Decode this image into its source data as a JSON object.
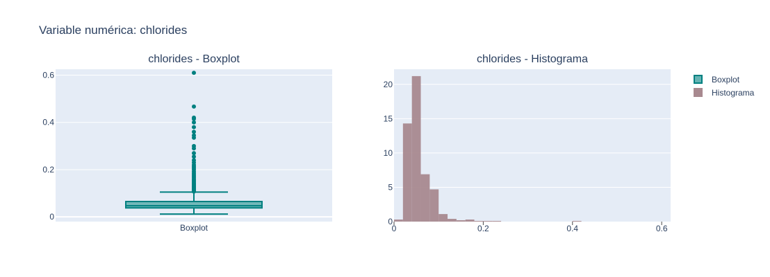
{
  "title": "Variable numérica: chlorides",
  "colors": {
    "plot_bg": "#e5ecf6",
    "grid": "#ffffff",
    "box_line": "#008080",
    "box_fill": "#66b3b3",
    "hist_fill": "#a8898f"
  },
  "chart_data": [
    {
      "type": "box",
      "title": "chlorides - Boxplot",
      "category": "Boxplot",
      "ylim": [
        -0.02,
        0.625
      ],
      "yticks": [
        0,
        0.2,
        0.4,
        0.6
      ],
      "ytick_labels": [
        "0",
        "0.2",
        "0.4",
        "0.6"
      ],
      "lowerfence": 0.012,
      "q1": 0.038,
      "median": 0.047,
      "q3": 0.065,
      "upperfence": 0.105,
      "outliers": [
        0.107,
        0.109,
        0.111,
        0.113,
        0.115,
        0.118,
        0.121,
        0.124,
        0.127,
        0.13,
        0.133,
        0.137,
        0.141,
        0.145,
        0.15,
        0.155,
        0.16,
        0.166,
        0.172,
        0.178,
        0.185,
        0.192,
        0.2,
        0.207,
        0.213,
        0.22,
        0.23,
        0.24,
        0.255,
        0.27,
        0.29,
        0.3,
        0.335,
        0.345,
        0.36,
        0.38,
        0.4,
        0.415,
        0.42,
        0.467,
        0.61
      ],
      "grid": true
    },
    {
      "type": "histogram",
      "title": "chlorides - Histograma",
      "bin_width": 0.02,
      "bin_start": 0,
      "xlim": [
        0,
        0.62
      ],
      "ylim": [
        0,
        22.2
      ],
      "xticks": [
        0,
        0.2,
        0.4,
        0.6
      ],
      "xtick_labels": [
        "0",
        "0.2",
        "0.4",
        "0.6"
      ],
      "yticks": [
        0,
        5,
        10,
        15,
        20
      ],
      "ytick_labels": [
        "0",
        "5",
        "10",
        "15",
        "20"
      ],
      "values": [
        0.3,
        14.3,
        21.2,
        6.9,
        4.7,
        1.1,
        0.4,
        0.2,
        0.3,
        0.1,
        0.1,
        0.1,
        0,
        0,
        0,
        0,
        0,
        0,
        0,
        0,
        0.1,
        0,
        0,
        0,
        0,
        0,
        0,
        0,
        0,
        0,
        0
      ],
      "grid": true
    }
  ],
  "legend": {
    "position": "right",
    "items": [
      {
        "label": "Boxplot",
        "kind": "box"
      },
      {
        "label": "Histograma",
        "kind": "hist"
      }
    ]
  }
}
